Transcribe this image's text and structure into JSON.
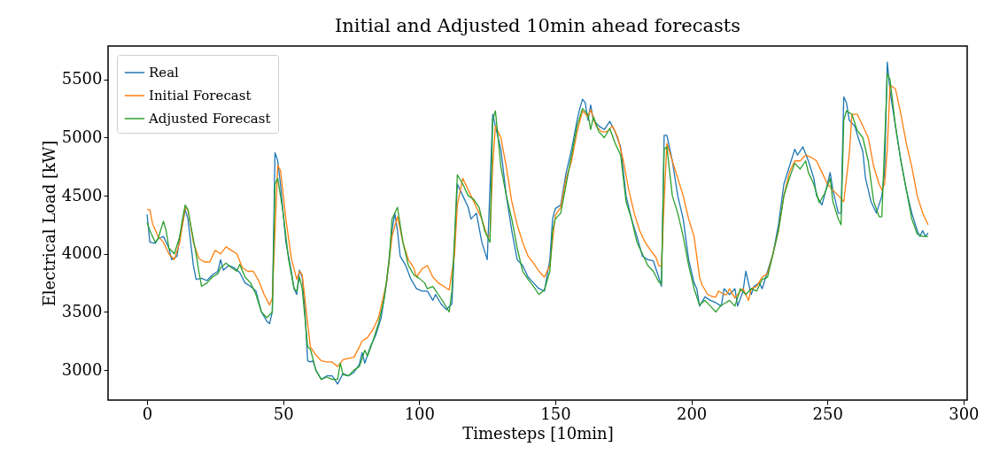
{
  "chart_data": {
    "type": "line",
    "title": "Initial and Adjusted 10min ahead forecasts",
    "xlabel": "Timesteps [10min]",
    "ylabel": "Electrical Load [kW]",
    "xlim": [
      -14.35,
      301.35
    ],
    "xticks": [
      0,
      50,
      100,
      150,
      200,
      250,
      300
    ],
    "ylim": [
      2742,
      5788
    ],
    "yticks": [
      3000,
      3500,
      4000,
      4500,
      5000,
      5500
    ],
    "grid": false,
    "legend": "top left",
    "line_style": "solid",
    "marker": "none",
    "series": [
      {
        "name": "Real",
        "color": "#1f77b4",
        "x": [
          0,
          1,
          3,
          4,
          6,
          8,
          9,
          11,
          12,
          13,
          14,
          15,
          16,
          17,
          18,
          20,
          22,
          24,
          26,
          27,
          28,
          30,
          32,
          34,
          36,
          38,
          40,
          42,
          44,
          45,
          46,
          47,
          48,
          49,
          51,
          53,
          54,
          55,
          56,
          57,
          58,
          59,
          60,
          61,
          62,
          64,
          66,
          68,
          70,
          72,
          74,
          76,
          78,
          79,
          80,
          82,
          84,
          86,
          88,
          90,
          91,
          92,
          93,
          95,
          97,
          99,
          101,
          103,
          105,
          106,
          108,
          110,
          112,
          114,
          116,
          118,
          119,
          121,
          123,
          125,
          127,
          128,
          130,
          132,
          134,
          136,
          138,
          140,
          142,
          144,
          146,
          148,
          149,
          150,
          152,
          154,
          156,
          158,
          159,
          160,
          161,
          162,
          163,
          164,
          166,
          168,
          170,
          172,
          174,
          176,
          178,
          180,
          182,
          184,
          186,
          188,
          189,
          190,
          191,
          193,
          195,
          197,
          199,
          201,
          202,
          203,
          205,
          207,
          209,
          211,
          212,
          214,
          216,
          217,
          219,
          220,
          222,
          223,
          225,
          226,
          228,
          230,
          232,
          234,
          236,
          238,
          239,
          241,
          243,
          245,
          246,
          248,
          250,
          251,
          252,
          254,
          255,
          256,
          257,
          258,
          260,
          262,
          263,
          264,
          266,
          268,
          270,
          271,
          272,
          273,
          275,
          277,
          279,
          281,
          283,
          284,
          285,
          286,
          287
        ],
        "values": [
          4340,
          4100,
          4090,
          4130,
          4150,
          4050,
          3950,
          3980,
          4150,
          4250,
          4380,
          4300,
          4100,
          3900,
          3780,
          3790,
          3770,
          3820,
          3850,
          3950,
          3860,
          3900,
          3880,
          3840,
          3750,
          3720,
          3680,
          3500,
          3420,
          3400,
          3500,
          4870,
          4800,
          4600,
          4100,
          3850,
          3700,
          3650,
          3860,
          3800,
          3500,
          3080,
          3070,
          3080,
          3000,
          2920,
          2950,
          2950,
          2880,
          2970,
          2950,
          2980,
          3050,
          3150,
          3060,
          3200,
          3300,
          3450,
          3750,
          4200,
          4350,
          4200,
          3980,
          3900,
          3780,
          3700,
          3680,
          3680,
          3600,
          3650,
          3570,
          3520,
          3570,
          4600,
          4500,
          4400,
          4300,
          4350,
          4100,
          3950,
          5200,
          5100,
          4900,
          4500,
          4200,
          3950,
          3900,
          3800,
          3750,
          3700,
          3680,
          3950,
          4300,
          4390,
          4420,
          4700,
          4900,
          5150,
          5250,
          5330,
          5300,
          5150,
          5280,
          5150,
          5100,
          5070,
          5140,
          5050,
          4920,
          4500,
          4300,
          4150,
          3980,
          3950,
          3940,
          3800,
          3720,
          5020,
          5020,
          4800,
          4500,
          4300,
          3950,
          3750,
          3700,
          3550,
          3630,
          3600,
          3580,
          3550,
          3700,
          3650,
          3700,
          3550,
          3680,
          3850,
          3650,
          3720,
          3750,
          3700,
          3850,
          4000,
          4250,
          4600,
          4750,
          4900,
          4850,
          4920,
          4800,
          4650,
          4500,
          4420,
          4600,
          4700,
          4550,
          4350,
          4350,
          5350,
          5300,
          5150,
          5100,
          4950,
          4880,
          4650,
          4450,
          4350,
          4500,
          4700,
          5650,
          5400,
          5100,
          4800,
          4550,
          4350,
          4200,
          4150,
          4200,
          4150,
          4180
        ]
      },
      {
        "name": "Initial Forecast",
        "color": "#ff7f0e",
        "x": [
          0,
          1,
          2,
          4,
          6,
          8,
          10,
          12,
          14,
          15,
          17,
          19,
          21,
          23,
          25,
          27,
          29,
          31,
          33,
          35,
          37,
          39,
          41,
          43,
          45,
          46,
          48,
          49,
          51,
          53,
          55,
          56,
          57,
          59,
          60,
          62,
          64,
          66,
          68,
          70,
          72,
          74,
          76,
          78,
          79,
          81,
          83,
          85,
          88,
          90,
          92,
          94,
          96,
          98,
          99,
          101,
          103,
          105,
          107,
          109,
          111,
          113,
          114,
          116,
          118,
          119,
          121,
          123,
          125,
          126,
          127,
          128,
          130,
          132,
          134,
          136,
          138,
          140,
          142,
          144,
          146,
          148,
          150,
          152,
          154,
          156,
          158,
          160,
          162,
          163,
          165,
          167,
          169,
          171,
          173,
          175,
          177,
          179,
          181,
          183,
          185,
          187,
          188,
          189,
          190,
          191,
          193,
          195,
          197,
          199,
          201,
          203,
          204,
          206,
          208,
          209,
          210,
          212,
          213,
          214,
          216,
          218,
          219,
          221,
          222,
          224,
          226,
          228,
          230,
          232,
          234,
          236,
          238,
          240,
          242,
          244,
          246,
          248,
          250,
          252,
          254,
          256,
          258,
          259,
          261,
          263,
          265,
          267,
          269,
          270,
          271,
          272,
          273,
          275,
          277,
          279,
          281,
          283,
          285,
          287
        ],
        "values": [
          4380,
          4380,
          4260,
          4150,
          4100,
          4000,
          3950,
          4100,
          4400,
          4380,
          4100,
          3960,
          3930,
          3930,
          4030,
          4000,
          4060,
          4030,
          4000,
          3880,
          3850,
          3850,
          3770,
          3650,
          3560,
          3620,
          4760,
          4720,
          4300,
          3960,
          3780,
          3850,
          3820,
          3400,
          3200,
          3130,
          3080,
          3070,
          3070,
          3030,
          3090,
          3100,
          3110,
          3200,
          3250,
          3280,
          3350,
          3450,
          3750,
          4150,
          4320,
          4100,
          3950,
          3880,
          3800,
          3870,
          3900,
          3800,
          3750,
          3720,
          3690,
          4000,
          4420,
          4650,
          4550,
          4500,
          4400,
          4300,
          4150,
          4150,
          4760,
          5100,
          5000,
          4750,
          4450,
          4250,
          4100,
          3980,
          3920,
          3850,
          3800,
          3900,
          4330,
          4400,
          4650,
          4800,
          5050,
          5230,
          5180,
          5240,
          5100,
          5050,
          5050,
          5100,
          5000,
          4800,
          4550,
          4350,
          4200,
          4100,
          4030,
          3970,
          3900,
          3890,
          4450,
          4950,
          4800,
          4650,
          4500,
          4300,
          4150,
          3800,
          3730,
          3650,
          3630,
          3630,
          3680,
          3650,
          3650,
          3700,
          3620,
          3680,
          3700,
          3600,
          3700,
          3720,
          3800,
          3830,
          4000,
          4200,
          4500,
          4700,
          4800,
          4800,
          4850,
          4830,
          4800,
          4700,
          4600,
          4550,
          4500,
          4450,
          4850,
          5200,
          5200,
          5100,
          5000,
          4750,
          4600,
          4550,
          4600,
          4900,
          5450,
          5420,
          5200,
          4950,
          4750,
          4500,
          4350,
          4250
        ]
      },
      {
        "name": "Adjusted Forecast",
        "color": "#2ca02c",
        "x": [
          0,
          1,
          3,
          4,
          6,
          7,
          8,
          10,
          12,
          13,
          14,
          15,
          16,
          18,
          19,
          20,
          22,
          24,
          26,
          27,
          29,
          31,
          33,
          34,
          36,
          38,
          40,
          42,
          44,
          46,
          47,
          48,
          50,
          52,
          54,
          55,
          56,
          57,
          59,
          60,
          62,
          64,
          66,
          68,
          70,
          71,
          72,
          74,
          76,
          78,
          80,
          81,
          83,
          85,
          87,
          89,
          90,
          92,
          94,
          96,
          98,
          100,
          102,
          103,
          105,
          107,
          109,
          111,
          112,
          113,
          114,
          116,
          118,
          120,
          122,
          124,
          126,
          127,
          128,
          130,
          132,
          134,
          136,
          138,
          140,
          142,
          144,
          146,
          148,
          149,
          150,
          152,
          154,
          156,
          158,
          160,
          162,
          163,
          164,
          166,
          168,
          170,
          172,
          174,
          176,
          178,
          180,
          182,
          184,
          186,
          188,
          189,
          190,
          191,
          193,
          195,
          197,
          199,
          201,
          203,
          205,
          207,
          209,
          211,
          212,
          214,
          216,
          218,
          220,
          222,
          224,
          226,
          228,
          230,
          232,
          234,
          236,
          238,
          240,
          242,
          243,
          245,
          247,
          249,
          251,
          252,
          254,
          255,
          256,
          257,
          259,
          261,
          263,
          265,
          267,
          269,
          270,
          272,
          273,
          275,
          277,
          279,
          281,
          283,
          285,
          287
        ],
        "values": [
          4270,
          4200,
          4100,
          4130,
          4280,
          4200,
          4050,
          4000,
          4150,
          4300,
          4420,
          4380,
          4250,
          4000,
          3850,
          3720,
          3750,
          3800,
          3830,
          3880,
          3920,
          3880,
          3850,
          3910,
          3800,
          3750,
          3650,
          3500,
          3450,
          3500,
          4600,
          4650,
          4350,
          3950,
          3700,
          3680,
          3800,
          3700,
          3200,
          3180,
          3000,
          2920,
          2940,
          2920,
          2920,
          3060,
          2960,
          2950,
          3000,
          3030,
          3170,
          3120,
          3250,
          3400,
          3600,
          3950,
          4300,
          4400,
          4100,
          3900,
          3820,
          3790,
          3750,
          3700,
          3720,
          3650,
          3580,
          3500,
          3680,
          4150,
          4680,
          4600,
          4500,
          4470,
          4400,
          4200,
          4100,
          5150,
          5230,
          4750,
          4500,
          4300,
          4050,
          3850,
          3780,
          3720,
          3650,
          3690,
          3850,
          4200,
          4300,
          4350,
          4600,
          4850,
          5100,
          5250,
          5200,
          5070,
          5180,
          5050,
          5000,
          5080,
          4950,
          4850,
          4450,
          4300,
          4100,
          4000,
          3900,
          3850,
          3760,
          3740,
          4900,
          4920,
          4500,
          4350,
          4150,
          3900,
          3700,
          3560,
          3600,
          3550,
          3500,
          3560,
          3570,
          3600,
          3550,
          3700,
          3650,
          3700,
          3680,
          3780,
          3800,
          4000,
          4200,
          4500,
          4650,
          4780,
          4730,
          4800,
          4700,
          4600,
          4440,
          4520,
          4650,
          4450,
          4300,
          4250,
          5150,
          5230,
          5200,
          5060,
          5000,
          4800,
          4450,
          4320,
          4320,
          5550,
          5500,
          5100,
          4800,
          4550,
          4300,
          4170,
          4150,
          4150
        ]
      }
    ]
  }
}
